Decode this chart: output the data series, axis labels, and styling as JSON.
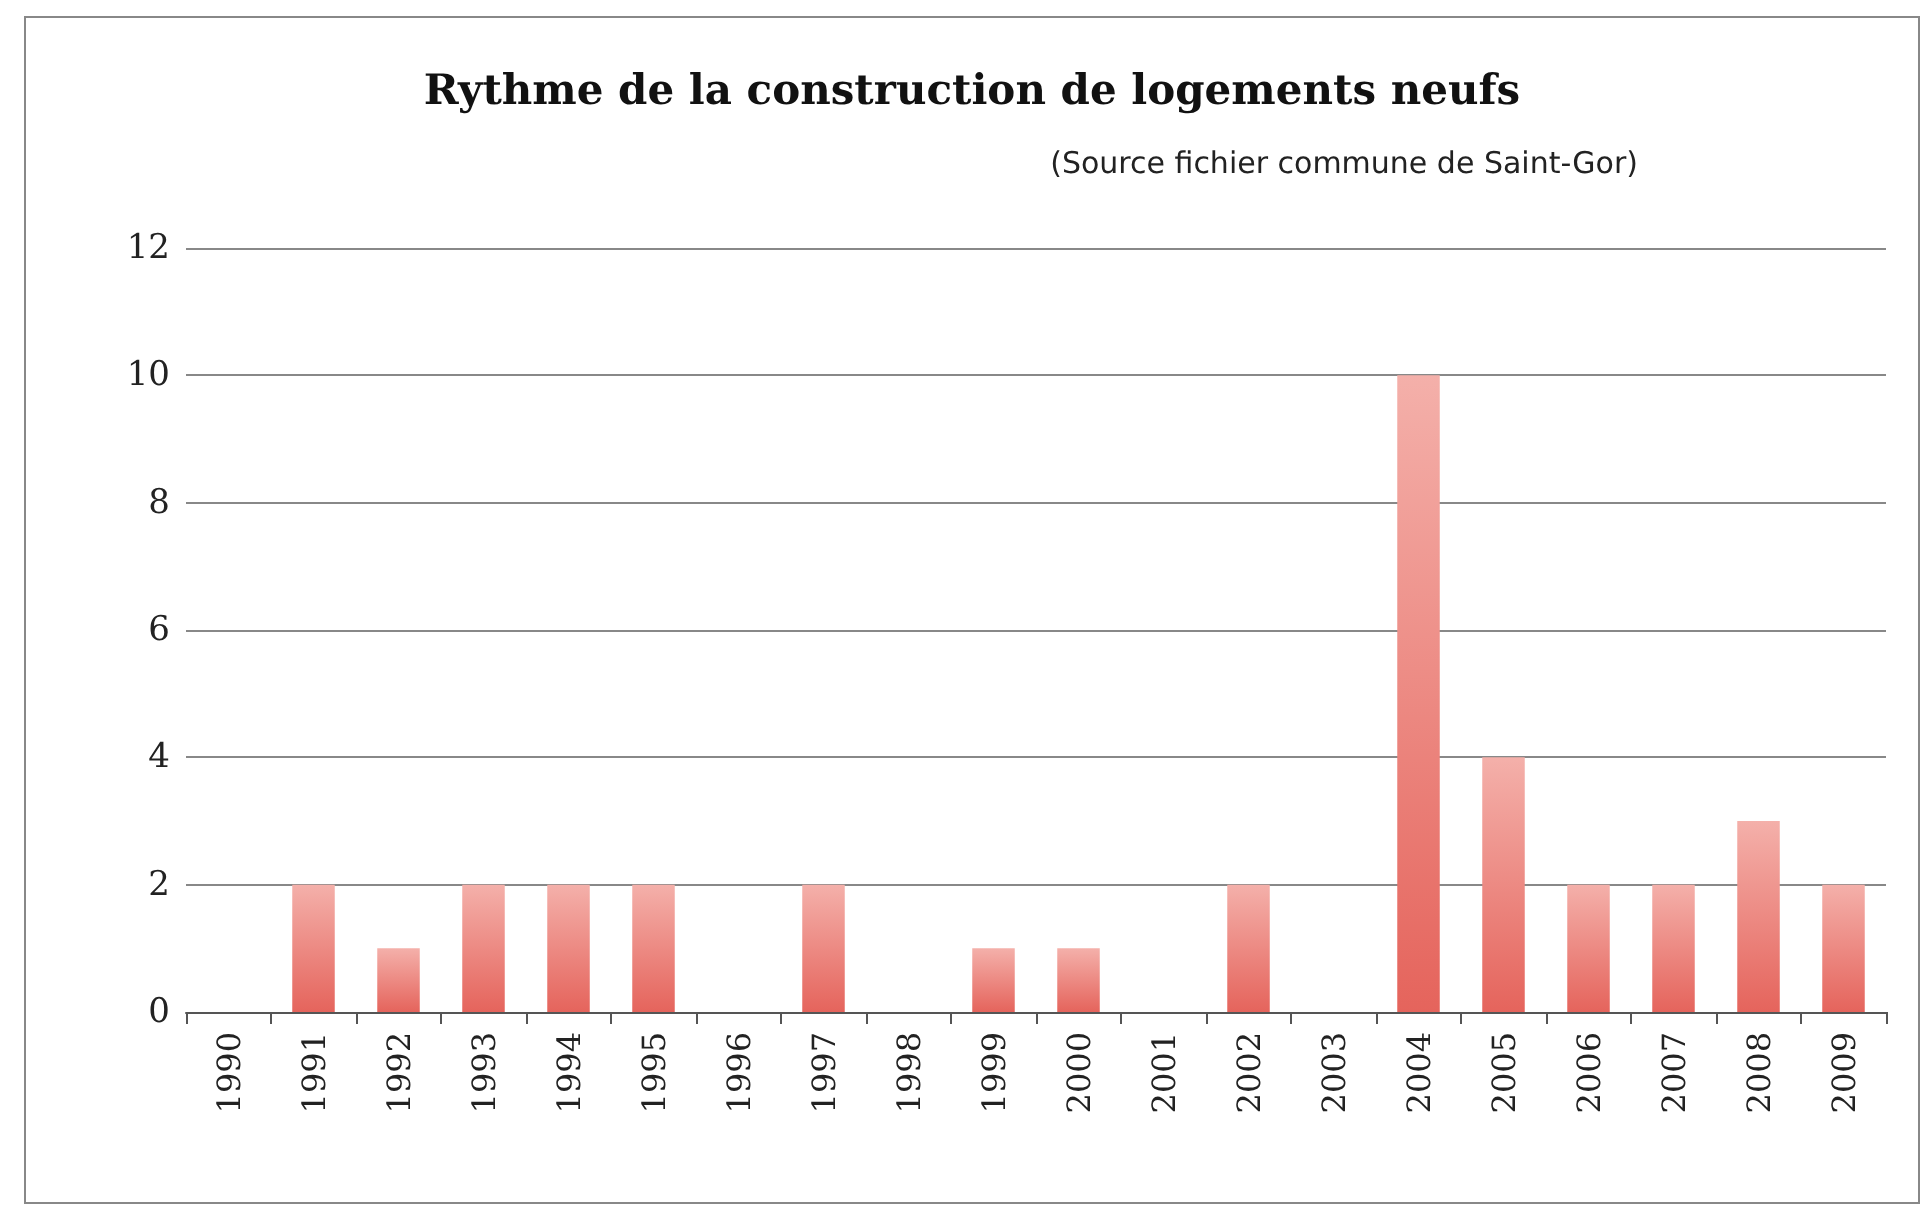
{
  "chart_data": {
    "type": "bar",
    "title": "Rythme de la construction de logements neufs",
    "subtitle": "(Source fichier commune de Saint-Gor)",
    "categories": [
      "1990",
      "1991",
      "1992",
      "1993",
      "1994",
      "1995",
      "1996",
      "1997",
      "1998",
      "1999",
      "2000",
      "2001",
      "2002",
      "2003",
      "2004",
      "2005",
      "2006",
      "2007",
      "2008",
      "2009"
    ],
    "values": [
      0,
      2,
      1,
      2,
      2,
      2,
      0,
      2,
      0,
      1,
      1,
      0,
      2,
      0,
      10,
      4,
      2,
      2,
      3,
      2
    ],
    "color": "#e5645c",
    "ylim": [
      0,
      12
    ],
    "yticks": [
      0,
      2,
      4,
      6,
      8,
      10,
      12
    ],
    "grid": "y"
  }
}
